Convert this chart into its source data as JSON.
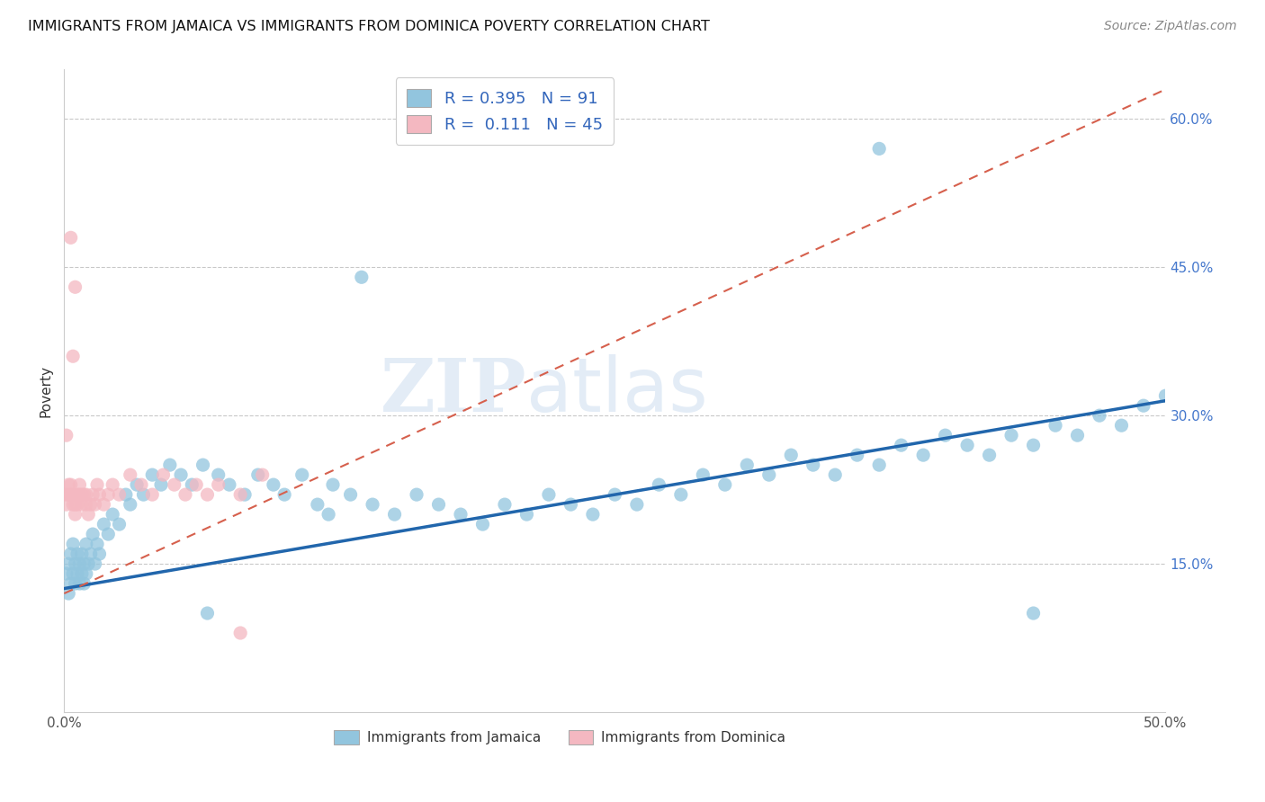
{
  "title": "IMMIGRANTS FROM JAMAICA VS IMMIGRANTS FROM DOMINICA POVERTY CORRELATION CHART",
  "source": "Source: ZipAtlas.com",
  "ylabel": "Poverty",
  "xlim": [
    0.0,
    0.5
  ],
  "ylim": [
    0.0,
    0.65
  ],
  "color_jamaica": "#92c5de",
  "color_dominica": "#f4b8c1",
  "color_jamaica_line": "#2166ac",
  "color_dominica_line": "#d6604d",
  "R_jamaica": 0.395,
  "N_jamaica": 91,
  "R_dominica": 0.111,
  "N_dominica": 45,
  "legend_label_jamaica": "Immigrants from Jamaica",
  "legend_label_dominica": "Immigrants from Dominica",
  "watermark_zip": "ZIP",
  "watermark_atlas": "atlas",
  "jamaica_x": [
    0.001,
    0.002,
    0.002,
    0.003,
    0.003,
    0.004,
    0.004,
    0.005,
    0.005,
    0.006,
    0.006,
    0.007,
    0.007,
    0.008,
    0.008,
    0.009,
    0.009,
    0.01,
    0.01,
    0.011,
    0.012,
    0.013,
    0.014,
    0.015,
    0.016,
    0.018,
    0.02,
    0.022,
    0.025,
    0.028,
    0.03,
    0.033,
    0.036,
    0.04,
    0.044,
    0.048,
    0.053,
    0.058,
    0.063,
    0.07,
    0.075,
    0.082,
    0.088,
    0.095,
    0.1,
    0.108,
    0.115,
    0.122,
    0.13,
    0.14,
    0.15,
    0.16,
    0.17,
    0.18,
    0.19,
    0.2,
    0.21,
    0.22,
    0.23,
    0.24,
    0.25,
    0.26,
    0.27,
    0.28,
    0.29,
    0.3,
    0.31,
    0.32,
    0.33,
    0.34,
    0.35,
    0.36,
    0.37,
    0.38,
    0.39,
    0.4,
    0.41,
    0.42,
    0.43,
    0.44,
    0.45,
    0.46,
    0.47,
    0.48,
    0.49,
    0.5,
    0.12,
    0.065,
    0.37,
    0.44,
    0.135
  ],
  "jamaica_y": [
    0.14,
    0.12,
    0.15,
    0.13,
    0.16,
    0.14,
    0.17,
    0.15,
    0.13,
    0.16,
    0.14,
    0.13,
    0.15,
    0.14,
    0.16,
    0.15,
    0.13,
    0.14,
    0.17,
    0.15,
    0.16,
    0.18,
    0.15,
    0.17,
    0.16,
    0.19,
    0.18,
    0.2,
    0.19,
    0.22,
    0.21,
    0.23,
    0.22,
    0.24,
    0.23,
    0.25,
    0.24,
    0.23,
    0.25,
    0.24,
    0.23,
    0.22,
    0.24,
    0.23,
    0.22,
    0.24,
    0.21,
    0.23,
    0.22,
    0.21,
    0.2,
    0.22,
    0.21,
    0.2,
    0.19,
    0.21,
    0.2,
    0.22,
    0.21,
    0.2,
    0.22,
    0.21,
    0.23,
    0.22,
    0.24,
    0.23,
    0.25,
    0.24,
    0.26,
    0.25,
    0.24,
    0.26,
    0.25,
    0.27,
    0.26,
    0.28,
    0.27,
    0.26,
    0.28,
    0.27,
    0.29,
    0.28,
    0.3,
    0.29,
    0.31,
    0.32,
    0.2,
    0.1,
    0.57,
    0.1,
    0.44
  ],
  "dominica_x": [
    0.001,
    0.001,
    0.002,
    0.002,
    0.003,
    0.003,
    0.004,
    0.004,
    0.005,
    0.005,
    0.006,
    0.006,
    0.007,
    0.007,
    0.008,
    0.008,
    0.009,
    0.01,
    0.01,
    0.011,
    0.012,
    0.013,
    0.014,
    0.015,
    0.016,
    0.018,
    0.02,
    0.022,
    0.025,
    0.03,
    0.035,
    0.04,
    0.045,
    0.05,
    0.055,
    0.06,
    0.065,
    0.07,
    0.08,
    0.09,
    0.003,
    0.004,
    0.005,
    0.08,
    0.001
  ],
  "dominica_y": [
    0.22,
    0.21,
    0.23,
    0.22,
    0.22,
    0.23,
    0.21,
    0.22,
    0.2,
    0.21,
    0.22,
    0.21,
    0.22,
    0.23,
    0.22,
    0.21,
    0.22,
    0.21,
    0.22,
    0.2,
    0.21,
    0.22,
    0.21,
    0.23,
    0.22,
    0.21,
    0.22,
    0.23,
    0.22,
    0.24,
    0.23,
    0.22,
    0.24,
    0.23,
    0.22,
    0.23,
    0.22,
    0.23,
    0.22,
    0.24,
    0.48,
    0.36,
    0.43,
    0.08,
    0.28
  ],
  "jam_line_x0": 0.0,
  "jam_line_y0": 0.125,
  "jam_line_x1": 0.5,
  "jam_line_y1": 0.315,
  "dom_line_x0": 0.0,
  "dom_line_y0": 0.12,
  "dom_line_x1": 0.5,
  "dom_line_y1": 0.63
}
